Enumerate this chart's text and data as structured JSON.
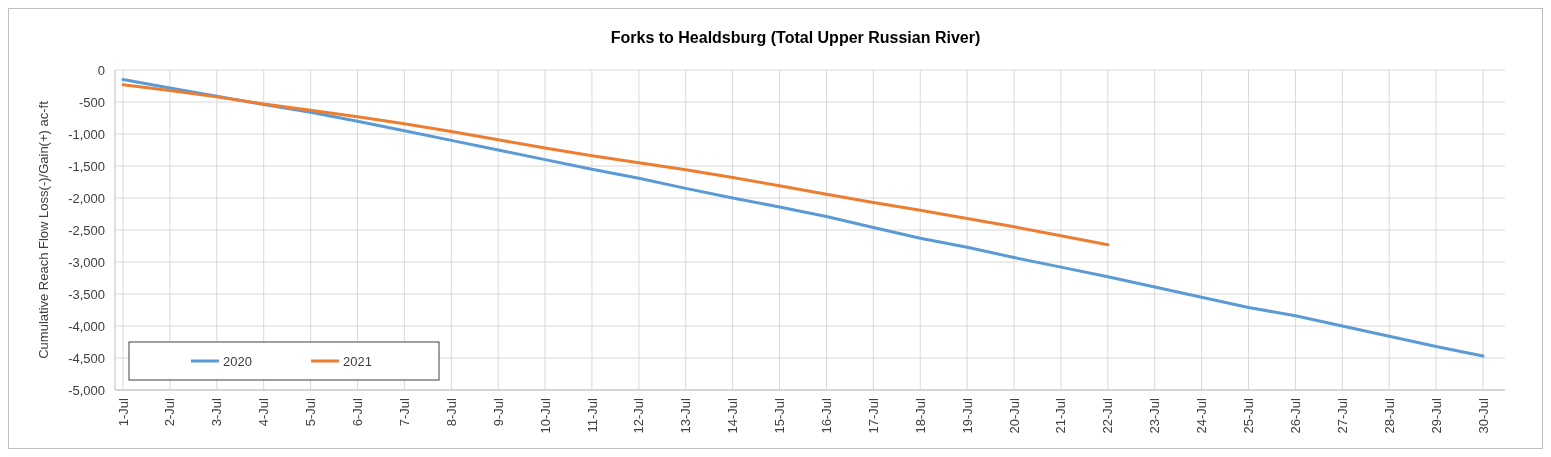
{
  "chart_data": {
    "type": "line",
    "title": "Forks to Healdsburg (Total Upper Russian River)",
    "ylabel": "Cumulative Reach Flow Loss(-)/Gain(+) ac-ft",
    "categories": [
      "1-Jul",
      "2-Jul",
      "3-Jul",
      "4-Jul",
      "5-Jul",
      "6-Jul",
      "7-Jul",
      "8-Jul",
      "9-Jul",
      "10-Jul",
      "11-Jul",
      "12-Jul",
      "13-Jul",
      "14-Jul",
      "15-Jul",
      "16-Jul",
      "17-Jul",
      "18-Jul",
      "19-Jul",
      "20-Jul",
      "21-Jul",
      "22-Jul",
      "23-Jul",
      "24-Jul",
      "25-Jul",
      "26-Jul",
      "27-Jul",
      "28-Jul",
      "29-Jul",
      "30-Jul"
    ],
    "series": [
      {
        "name": "2020",
        "color": "#5b9bd5",
        "values": [
          -150,
          -280,
          -410,
          -540,
          -660,
          -800,
          -950,
          -1100,
          -1250,
          -1400,
          -1550,
          -1690,
          -1850,
          -2000,
          -2140,
          -2290,
          -2460,
          -2630,
          -2770,
          -2930,
          -3080,
          -3230,
          -3390,
          -3550,
          -3710,
          -3840,
          -4000,
          -4160,
          -4320,
          -4470
        ]
      },
      {
        "name": "2021",
        "color": "#ed7d31",
        "values": [
          -230,
          -320,
          -420,
          -530,
          -630,
          -730,
          -840,
          -960,
          -1090,
          -1220,
          -1340,
          -1450,
          -1560,
          -1680,
          -1810,
          -1940,
          -2070,
          -2190,
          -2320,
          -2450,
          -2590,
          -2730,
          null,
          null,
          null,
          null,
          null,
          null,
          null,
          null
        ]
      }
    ],
    "ylim": [
      -5000,
      0
    ],
    "yticks": [
      {
        "value": -5000,
        "label": "-5,000"
      },
      {
        "value": -4500,
        "label": "-4,500"
      },
      {
        "value": -4000,
        "label": "-4,000"
      },
      {
        "value": -3500,
        "label": "-3,500"
      },
      {
        "value": -3000,
        "label": "-3,000"
      },
      {
        "value": -2500,
        "label": "-2,500"
      },
      {
        "value": -2000,
        "label": "-2,000"
      },
      {
        "value": -1500,
        "label": "-1,500"
      },
      {
        "value": -1000,
        "label": "-1,000"
      },
      {
        "value": -500,
        "label": "-500"
      },
      0
    ],
    "grid": true,
    "legend": "bottom left",
    "marker": "none",
    "line_style": "solid"
  }
}
